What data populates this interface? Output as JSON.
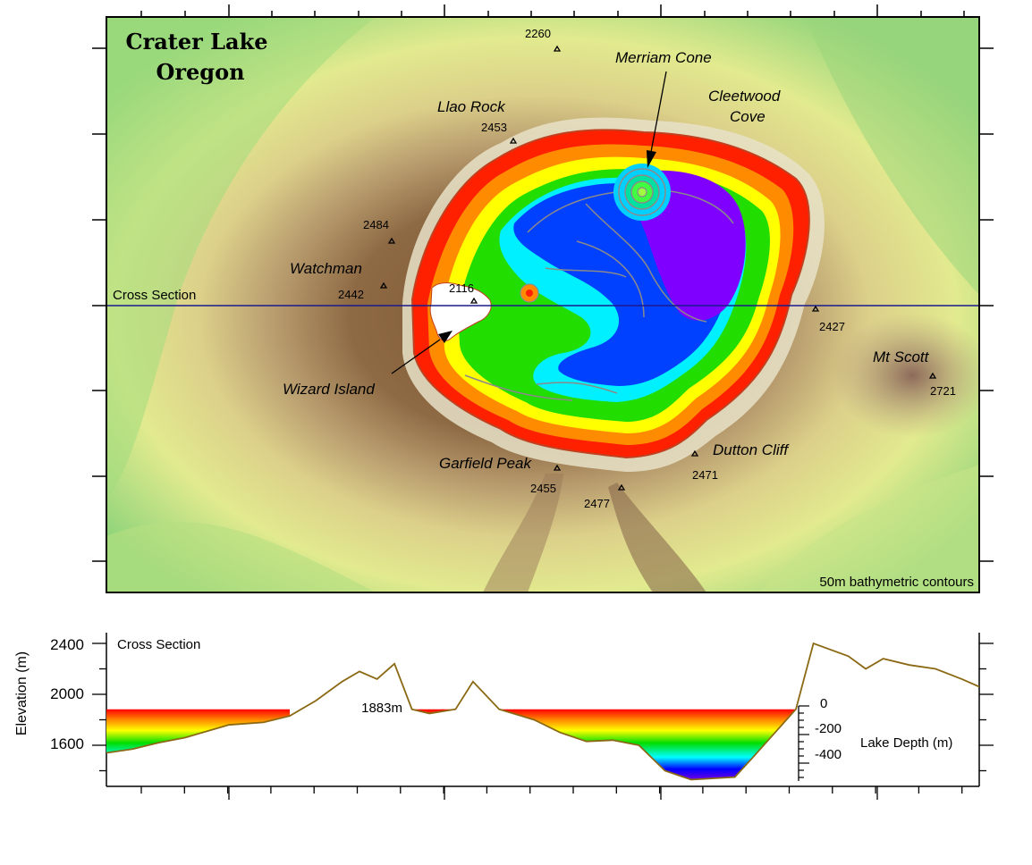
{
  "title": {
    "line1": "Crater Lake",
    "line2": "Oregon"
  },
  "map": {
    "cross_section_label": "Cross Section",
    "contour_note": "50m bathymetric contours",
    "features": [
      {
        "name": "Merriam Cone"
      },
      {
        "name": "Cleetwood Cove",
        "line1": "Cleetwood",
        "line2": "Cove"
      },
      {
        "name": "Llao Rock"
      },
      {
        "name": "Watchman"
      },
      {
        "name": "Wizard Island"
      },
      {
        "name": "Mt Scott"
      },
      {
        "name": "Garfield Peak"
      },
      {
        "name": "Dutton Cliff"
      }
    ],
    "peaks": [
      {
        "elev": "2260"
      },
      {
        "elev": "2453"
      },
      {
        "elev": "2484"
      },
      {
        "elev": "2442"
      },
      {
        "elev": "2116"
      },
      {
        "elev": "2427"
      },
      {
        "elev": "2721"
      },
      {
        "elev": "2455"
      },
      {
        "elev": "2477"
      },
      {
        "elev": "2471"
      }
    ]
  },
  "section": {
    "title": "Cross Section",
    "ylabel": "Elevation (m)",
    "yticks": [
      "2400",
      "2000",
      "1600"
    ],
    "lake_level_label": "1883m",
    "depth_label": "Lake Depth (m)",
    "depth_ticks": [
      "0",
      "-200",
      "-400"
    ]
  },
  "colors": {
    "cross_section_line": "#1a1a8c",
    "profile_line": "#8b6914",
    "contour": "#8a8a8a",
    "depth_ramp": [
      "#ff0000",
      "#ff7f00",
      "#ffff00",
      "#00dd00",
      "#00ffff",
      "#0000ff",
      "#8000ff"
    ]
  },
  "chart_data": {
    "type": "line",
    "title": "Cross Section",
    "ylabel": "Elevation (m)",
    "xlabel": "",
    "ylim": [
      1300,
      2500
    ],
    "lake_surface_m": 1883,
    "series": [
      {
        "values": [
          1540,
          1570,
          1620,
          1660,
          1700,
          1760,
          1780,
          1830,
          1950,
          2100,
          2180,
          2120,
          2240,
          1883,
          1850,
          1883,
          2100,
          1883,
          1800,
          1700,
          1630,
          1640,
          1600,
          1400,
          1330,
          1350,
          1500,
          1883,
          2400,
          2300,
          2200,
          2280,
          2230,
          2200,
          2120,
          2060
        ]
      }
    ],
    "x": [
      0,
      3,
      6,
      9,
      11,
      14,
      18,
      21,
      24,
      27,
      29,
      31,
      33,
      35,
      37,
      40,
      42,
      45,
      49,
      52,
      55,
      58,
      61,
      64,
      67,
      72,
      74,
      79,
      81,
      85,
      87,
      89,
      92,
      95,
      98,
      100
    ]
  }
}
